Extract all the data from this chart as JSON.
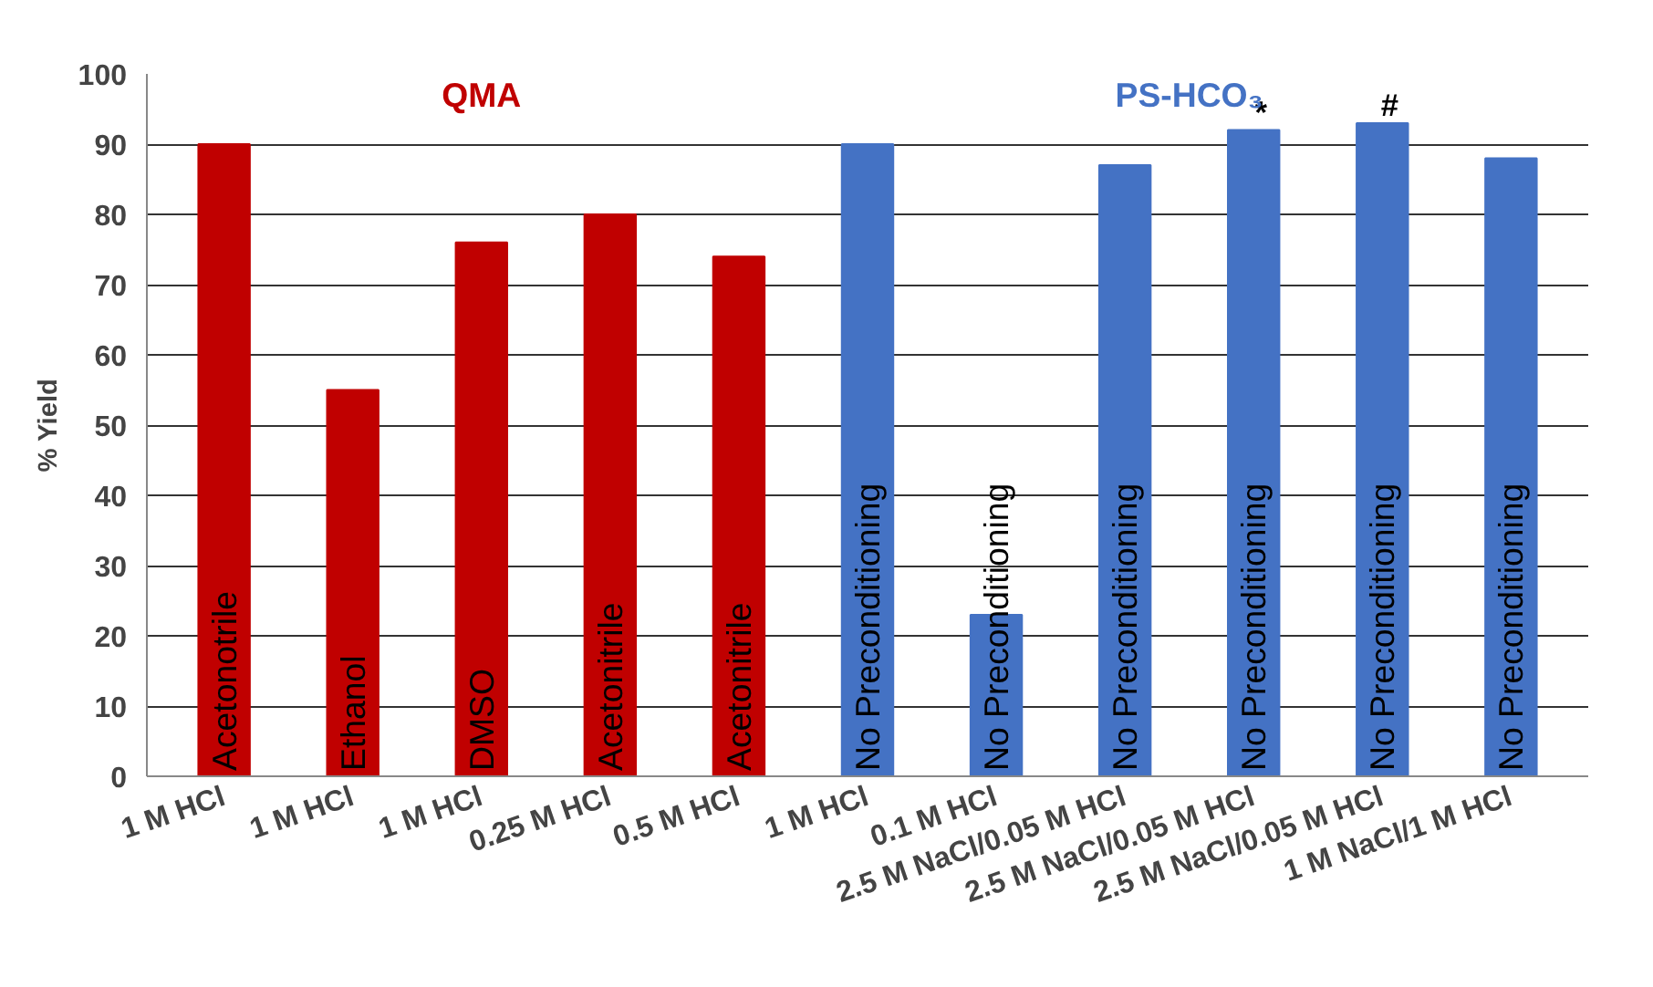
{
  "chart_data": {
    "type": "bar",
    "ylabel": "% Yield",
    "categories": [
      "1 M HCl",
      "1 M HCl",
      "1 M HCl",
      "0.25 M HCl",
      "0.5 M HCl",
      "1 M HCl",
      "0.1 M HCl",
      "2.5 M NaCl/0.05 M HCl",
      "2.5 M NaCl/0.05 M HCl",
      "2.5 M NaCl/0.05 M HCl",
      "1 M NaCl/1 M HCl"
    ],
    "series": [
      {
        "name": "QMA",
        "color": "#c00000",
        "values": [
          90,
          55,
          76,
          80,
          74,
          null,
          null,
          null,
          null,
          null,
          null
        ]
      },
      {
        "name": "PS-HCO₃",
        "color": "#4472c4",
        "values": [
          null,
          null,
          null,
          null,
          null,
          90,
          23,
          87,
          92,
          93,
          88
        ],
        "value_labels": [
          null,
          null,
          null,
          null,
          null,
          null,
          null,
          null,
          "*",
          "#",
          null
        ]
      }
    ],
    "ylim": [
      0,
      100
    ],
    "yticks": [
      0,
      10,
      20,
      30,
      40,
      50,
      60,
      70,
      80,
      90,
      100
    ],
    "grid": "y",
    "annotations": [
      "Acetonotrile",
      "Ethanol",
      "DMSO",
      "Acetonitrile",
      "Acetonitrile",
      "No Preconditioning",
      "No Preconditioning",
      "No Preconditioning",
      "No Preconditioning",
      "No Preconditioning",
      "No Preconditioning"
    ]
  }
}
